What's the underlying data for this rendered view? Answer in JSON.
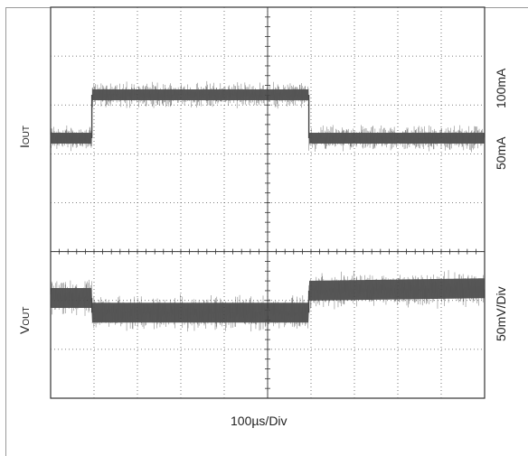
{
  "chart_data": {
    "type": "line",
    "title": "",
    "xlabel": "100µs/Div",
    "grid": true,
    "x_range_divs": [
      0,
      10
    ],
    "y_range_divs": [
      0,
      8
    ],
    "labels": {
      "iout_main": "I",
      "iout_sub": "OUT",
      "vout_main": "V",
      "vout_sub": "OUT",
      "iout_scale_high": "100mA",
      "iout_scale_low": "50mA",
      "vout_scale": "50mV/Div"
    },
    "series": [
      {
        "name": "IOUT",
        "unit": "mA",
        "points_us": [
          [
            0,
            50
          ],
          [
            95,
            50
          ],
          [
            95,
            100
          ],
          [
            595,
            100
          ],
          [
            595,
            50
          ],
          [
            1000,
            50
          ]
        ]
      },
      {
        "name": "VOUT",
        "unit": "div",
        "points_us": [
          [
            0,
            2.05
          ],
          [
            95,
            2.05
          ],
          [
            95,
            1.75
          ],
          [
            595,
            1.75
          ],
          [
            595,
            2.2
          ],
          [
            1000,
            2.25
          ]
        ]
      }
    ]
  }
}
